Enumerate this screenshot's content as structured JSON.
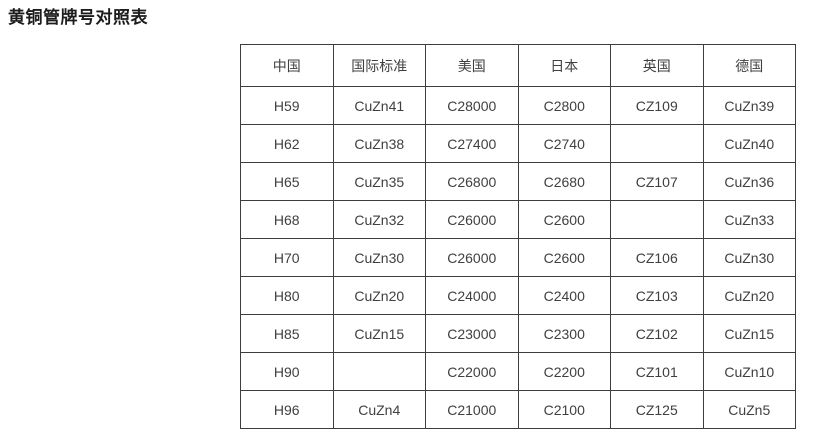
{
  "title": "黄铜管牌号对照表",
  "table": {
    "columns": [
      "中国",
      "国际标准",
      "美国",
      "日本",
      "英国",
      "德国"
    ],
    "rows": [
      [
        "H59",
        "CuZn41",
        "C28000",
        "C2800",
        "CZ109",
        "CuZn39"
      ],
      [
        "H62",
        "CuZn38",
        "C27400",
        "C2740",
        "",
        "CuZn40"
      ],
      [
        "H65",
        "CuZn35",
        "C26800",
        "C2680",
        "CZ107",
        "CuZn36"
      ],
      [
        "H68",
        "CuZn32",
        "C26000",
        "C2600",
        "",
        "CuZn33"
      ],
      [
        "H70",
        "CuZn30",
        "C26000",
        "C2600",
        "CZ106",
        "CuZn30"
      ],
      [
        "H80",
        "CuZn20",
        "C24000",
        "C2400",
        "CZ103",
        "CuZn20"
      ],
      [
        "H85",
        "CuZn15",
        "C23000",
        "C2300",
        "CZ102",
        "CuZn15"
      ],
      [
        "H90",
        "",
        "C22000",
        "C2200",
        "CZ101",
        "CuZn10"
      ],
      [
        "H96",
        "CuZn4",
        "C21000",
        "C2100",
        "CZ125",
        "CuZn5"
      ]
    ]
  },
  "colors": {
    "background": "#ffffff",
    "border": "#3e3e3e",
    "cell_text": "#404040",
    "title_text": "#1c1c1c"
  }
}
